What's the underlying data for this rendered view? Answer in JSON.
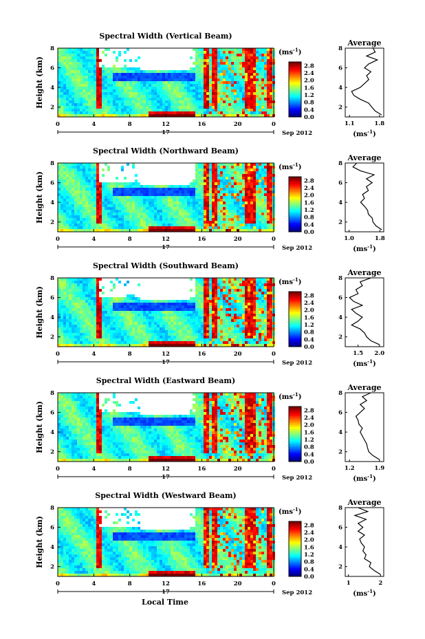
{
  "figure": {
    "xlabel": "Local Time",
    "date_center": "17",
    "date_suffix": "Sep 2012",
    "ylabel": "Height (km)",
    "unit": "(ms",
    "unit_sup": "-1",
    "unit_close": ")",
    "average_title": "Average"
  },
  "chart_data": [
    {
      "type": "heatmap",
      "title": "Spectral Width (Vertical Beam)",
      "x_ticks": [
        "0",
        "4",
        "8",
        "12",
        "16",
        "20",
        "0"
      ],
      "y_ticks": [
        "2",
        "4",
        "6",
        "8"
      ],
      "xlim": [
        0,
        24
      ],
      "ylim": [
        1,
        8
      ],
      "colorbar": {
        "ticks": [
          "0.0",
          "0.4",
          "0.8",
          "1.2",
          "1.6",
          "2.0",
          "2.4",
          "2.8"
        ],
        "range": [
          0,
          3.0
        ]
      },
      "profile": {
        "title": "Average",
        "x_ticks": [
          "1.1",
          "1.8"
        ],
        "xlim": [
          1.0,
          1.9
        ],
        "heights": [
          1.2,
          1.6,
          2.0,
          2.4,
          2.8,
          3.2,
          3.6,
          4.0,
          4.4,
          4.8,
          5.2,
          5.6,
          6.0,
          6.4,
          6.8,
          7.2,
          7.6,
          8.0
        ],
        "values": [
          1.85,
          1.7,
          1.62,
          1.55,
          1.35,
          1.2,
          1.15,
          1.35,
          1.45,
          1.55,
          1.5,
          1.6,
          1.45,
          1.55,
          1.75,
          1.5,
          1.7,
          1.65
        ]
      }
    },
    {
      "type": "heatmap",
      "title": "Spectral Width (Northward Beam)",
      "x_ticks": [
        "0",
        "4",
        "8",
        "12",
        "16",
        "20",
        "0"
      ],
      "y_ticks": [
        "2",
        "4",
        "6",
        "8"
      ],
      "xlim": [
        0,
        24
      ],
      "ylim": [
        1,
        8
      ],
      "colorbar": {
        "ticks": [
          "0.0",
          "0.4",
          "0.8",
          "1.2",
          "1.6",
          "2.0",
          "2.4",
          "2.8"
        ],
        "range": [
          0,
          3.0
        ]
      },
      "profile": {
        "title": "Average",
        "x_ticks": [
          "1.0",
          "1.8"
        ],
        "xlim": [
          0.9,
          1.9
        ],
        "heights": [
          1.2,
          1.6,
          2.0,
          2.4,
          2.8,
          3.2,
          3.6,
          4.0,
          4.4,
          4.8,
          5.2,
          5.6,
          6.0,
          6.4,
          6.8,
          7.2,
          7.6,
          8.0
        ],
        "values": [
          1.85,
          1.7,
          1.62,
          1.6,
          1.5,
          1.48,
          1.4,
          1.3,
          1.4,
          1.35,
          1.5,
          1.45,
          1.6,
          1.45,
          1.65,
          1.3,
          1.1,
          1.2
        ]
      }
    },
    {
      "type": "heatmap",
      "title": "Spectral Width (Southward Beam)",
      "x_ticks": [
        "0",
        "4",
        "8",
        "12",
        "16",
        "20",
        "0"
      ],
      "y_ticks": [
        "2",
        "4",
        "6",
        "8"
      ],
      "xlim": [
        0,
        24
      ],
      "ylim": [
        1,
        8
      ],
      "colorbar": {
        "ticks": [
          "0.0",
          "0.4",
          "0.8",
          "1.2",
          "1.6",
          "2.0",
          "2.4",
          "2.8"
        ],
        "range": [
          0,
          3.0
        ]
      },
      "profile": {
        "title": "Average",
        "x_ticks": [
          "1.5",
          "2.0"
        ],
        "xlim": [
          1.2,
          2.1
        ],
        "heights": [
          1.2,
          1.6,
          2.0,
          2.4,
          2.8,
          3.2,
          3.6,
          4.0,
          4.4,
          4.8,
          5.2,
          5.6,
          6.0,
          6.4,
          6.8,
          7.2,
          7.6,
          8.0
        ],
        "values": [
          2.0,
          1.8,
          1.7,
          1.65,
          1.55,
          1.35,
          1.5,
          1.6,
          1.45,
          1.35,
          1.6,
          1.4,
          1.3,
          1.5,
          1.45,
          1.6,
          1.55,
          1.8
        ]
      }
    },
    {
      "type": "heatmap",
      "title": "Spectral Width (Eastward Beam)",
      "x_ticks": [
        "0",
        "4",
        "8",
        "12",
        "16",
        "20",
        "0"
      ],
      "y_ticks": [
        "2",
        "4",
        "6",
        "8"
      ],
      "xlim": [
        0,
        24
      ],
      "ylim": [
        1,
        8
      ],
      "colorbar": {
        "ticks": [
          "0.0",
          "0.4",
          "0.8",
          "1.2",
          "1.6",
          "2.0",
          "2.4",
          "2.8"
        ],
        "range": [
          0,
          3.0
        ]
      },
      "profile": {
        "title": "Average",
        "x_ticks": [
          "1.2",
          "1.9"
        ],
        "xlim": [
          1.1,
          2.0
        ],
        "heights": [
          1.2,
          1.6,
          2.0,
          2.4,
          2.8,
          3.2,
          3.6,
          4.0,
          4.4,
          4.8,
          5.2,
          5.6,
          6.0,
          6.4,
          6.8,
          7.2,
          7.6,
          8.0
        ],
        "values": [
          1.9,
          1.75,
          1.65,
          1.62,
          1.6,
          1.55,
          1.5,
          1.45,
          1.5,
          1.42,
          1.4,
          1.35,
          1.45,
          1.55,
          1.45,
          1.6,
          1.5,
          1.7
        ]
      }
    },
    {
      "type": "heatmap",
      "title": "Spectral Width (Westward Beam)",
      "x_ticks": [
        "0",
        "4",
        "8",
        "12",
        "16",
        "20",
        "0"
      ],
      "y_ticks": [
        "2",
        "4",
        "6",
        "8"
      ],
      "xlim": [
        0,
        24
      ],
      "ylim": [
        1,
        8
      ],
      "colorbar": {
        "ticks": [
          "0.0",
          "0.4",
          "0.8",
          "1.2",
          "1.6",
          "2.0",
          "2.4",
          "2.8"
        ],
        "range": [
          0,
          3.0
        ]
      },
      "profile": {
        "title": "Average",
        "x_ticks": [
          "1",
          "2"
        ],
        "xlim": [
          0.9,
          2.1
        ],
        "heights": [
          1.2,
          1.6,
          2.0,
          2.4,
          2.8,
          3.2,
          3.6,
          4.0,
          4.4,
          4.8,
          5.2,
          5.6,
          6.0,
          6.4,
          6.8,
          7.2,
          7.6,
          8.0
        ],
        "values": [
          2.0,
          1.8,
          1.65,
          1.7,
          1.5,
          1.55,
          1.45,
          1.5,
          1.4,
          1.35,
          1.5,
          1.3,
          1.45,
          1.3,
          1.55,
          1.2,
          1.6,
          1.3
        ]
      }
    }
  ]
}
